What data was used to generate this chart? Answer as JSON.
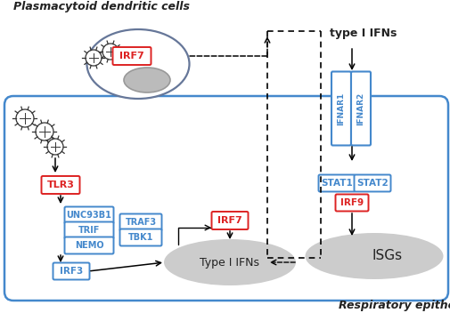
{
  "bg_color": "#ffffff",
  "cell_border_color": "#5588bb",
  "red_box_color": "#dd2222",
  "blue_box_color": "#4488cc",
  "text_color_dark": "#222222",
  "dashed_color": "#555555",
  "title_pdc": "Plasmacytoid dendritic cells",
  "title_rec": "Respiratory epithelial cells",
  "labels": {
    "IRF7_pdc": "IRF7",
    "type_I_IFNs_label": "type I IFNs",
    "TLR3": "TLR3",
    "UNC93B1": "UNC93B1",
    "TRIF": "TRIF",
    "NEMO": "NEMO",
    "TRAF3": "TRAF3",
    "TBK1": "TBK1",
    "IRF3": "IRF3",
    "IRF7_mid": "IRF7",
    "TypeI_IFNs": "Type I IFNs",
    "IFNAR1": "IFNAR1",
    "IFNAR2": "IFNAR2",
    "STAT1": "STAT1",
    "STAT2": "STAT2",
    "IRF9": "IRF9",
    "ISGs": "ISGs"
  }
}
